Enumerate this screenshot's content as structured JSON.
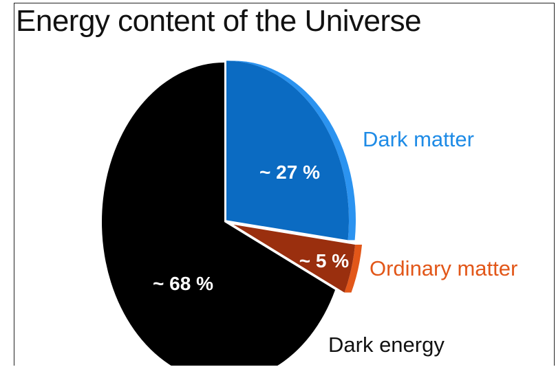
{
  "chart_data": {
    "type": "pie",
    "title": "Energy content of the Universe",
    "slices": [
      {
        "name": "Dark matter",
        "value": 27,
        "label": "~ 27 %",
        "color": "#0b6bc2",
        "side_color": "#2b93f0",
        "label_color": "#1e8be6"
      },
      {
        "name": "Ordinary matter",
        "value": 5,
        "label": "~ 5 %",
        "color": "#9a2f0e",
        "side_color": "#e25719",
        "label_color": "#e25719"
      },
      {
        "name": "Dark energy",
        "value": 68,
        "label": "~ 68 %",
        "color": "#000000",
        "side_color": "#000000",
        "label_color": "#111111"
      }
    ]
  }
}
